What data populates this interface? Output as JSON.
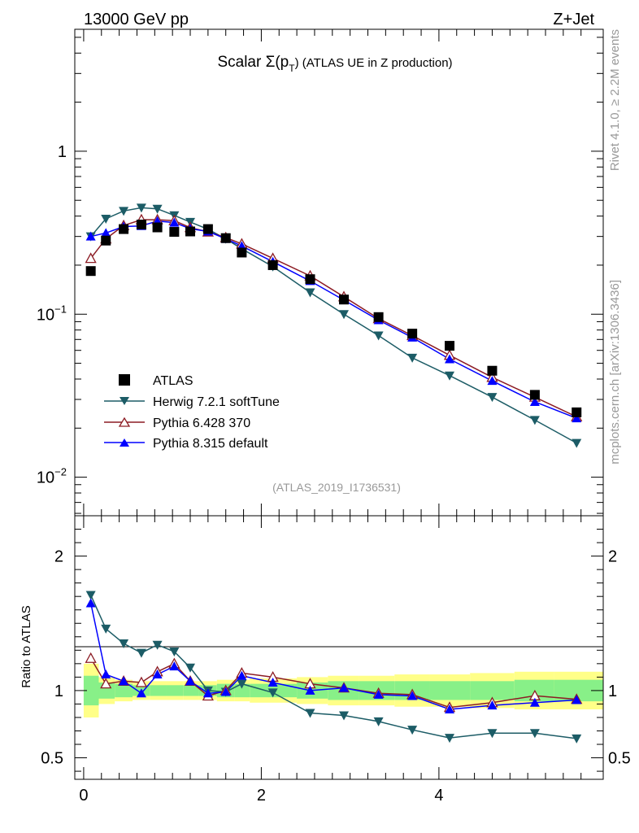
{
  "header": {
    "energy_label": "13000 GeV pp",
    "process_label": "Z+Jet"
  },
  "side_labels": {
    "rivet": "Rivet 4.1.0, ≥ 2.2M events",
    "mcplots": "mcplots.cern.ch [arXiv:1306.3436]"
  },
  "chart_data": [
    {
      "type": "line",
      "panel": "main",
      "title": "Scalar Σ(p_T) (ATLAS UE in Z production)",
      "title_parts": {
        "pre": "Scalar Σ(p",
        "sub": "T",
        "post": ") (ATLAS UE in Z production)"
      },
      "analysis_id": "(ATLAS_2019_I1736531)",
      "xscale": "linear",
      "yscale": "log",
      "xlim": [
        -0.1,
        5.85
      ],
      "ylim": [
        0.0058,
        5.6
      ],
      "ytick_labels": [
        {
          "value": 1,
          "base": "1",
          "exp": ""
        },
        {
          "value": 0.1,
          "base": "10",
          "exp": "−1"
        },
        {
          "value": 0.01,
          "base": "10",
          "exp": "−2"
        }
      ],
      "legend_position": "bottom-left",
      "series": [
        {
          "name": "ATLAS",
          "color": "#000000",
          "marker": "square",
          "x": [
            0.08,
            0.25,
            0.45,
            0.65,
            0.83,
            1.02,
            1.2,
            1.4,
            1.6,
            1.78,
            2.13,
            2.55,
            2.93,
            3.32,
            3.7,
            4.12,
            4.6,
            5.08,
            5.55
          ],
          "y": [
            0.184,
            0.283,
            0.333,
            0.355,
            0.341,
            0.32,
            0.322,
            0.333,
            0.293,
            0.239,
            0.2,
            0.164,
            0.123,
            0.096,
            0.076,
            0.064,
            0.045,
            0.032,
            0.025
          ]
        },
        {
          "name": "Herwig 7.2.1 softTune",
          "color": "#1c5c66",
          "marker": "triangle-down",
          "x": [
            0.08,
            0.25,
            0.45,
            0.65,
            0.83,
            1.02,
            1.2,
            1.4,
            1.6,
            1.78,
            2.13,
            2.55,
            2.93,
            3.32,
            3.7,
            4.12,
            4.6,
            5.08,
            5.55
          ],
          "y": [
            0.3,
            0.385,
            0.43,
            0.45,
            0.443,
            0.404,
            0.368,
            0.332,
            0.29,
            0.252,
            0.196,
            0.136,
            0.1,
            0.074,
            0.054,
            0.042,
            0.031,
            0.0224,
            0.0162
          ]
        },
        {
          "name": "Pythia 6.428 370",
          "color": "#8c1c24",
          "marker": "triangle-up-open",
          "x": [
            0.08,
            0.25,
            0.45,
            0.65,
            0.83,
            1.02,
            1.2,
            1.4,
            1.6,
            1.78,
            2.13,
            2.55,
            2.93,
            3.32,
            3.7,
            4.12,
            4.6,
            5.08,
            5.55
          ],
          "y": [
            0.22,
            0.29,
            0.35,
            0.38,
            0.38,
            0.375,
            0.34,
            0.32,
            0.295,
            0.27,
            0.22,
            0.172,
            0.128,
            0.094,
            0.074,
            0.056,
            0.041,
            0.031,
            0.0235
          ]
        },
        {
          "name": "Pythia 8.315 default",
          "color": "#0000ff",
          "marker": "triangle-up",
          "x": [
            0.08,
            0.25,
            0.45,
            0.65,
            0.83,
            1.02,
            1.2,
            1.4,
            1.6,
            1.78,
            2.13,
            2.55,
            2.93,
            3.32,
            3.7,
            4.12,
            4.6,
            5.08,
            5.55
          ],
          "y": [
            0.3,
            0.315,
            0.345,
            0.348,
            0.373,
            0.365,
            0.335,
            0.322,
            0.29,
            0.262,
            0.21,
            0.16,
            0.122,
            0.092,
            0.072,
            0.053,
            0.039,
            0.029,
            0.023
          ]
        }
      ]
    },
    {
      "type": "line",
      "panel": "ratio",
      "ylabel": "Ratio to ATLAS",
      "xscale": "linear",
      "yscale": "linear",
      "xlim": [
        -0.1,
        5.85
      ],
      "ylim": [
        0.34,
        2.3
      ],
      "xtick_labels": [
        "0",
        "2",
        "4"
      ],
      "ytick_labels": [
        "2",
        "1",
        "0.5"
      ],
      "band_edges": [
        0.0,
        0.17,
        0.35,
        0.55,
        0.75,
        0.93,
        1.12,
        1.3,
        1.5,
        1.7,
        1.87,
        2.4,
        2.75,
        3.1,
        3.5,
        3.9,
        4.35,
        4.85,
        5.3,
        5.85
      ],
      "band_inner": [
        0.11,
        0.06,
        0.05,
        0.04,
        0.04,
        0.04,
        0.04,
        0.04,
        0.05,
        0.05,
        0.05,
        0.06,
        0.07,
        0.07,
        0.07,
        0.07,
        0.07,
        0.08,
        0.08
      ],
      "band_outer": [
        0.2,
        0.1,
        0.08,
        0.07,
        0.07,
        0.07,
        0.07,
        0.07,
        0.08,
        0.08,
        0.09,
        0.1,
        0.11,
        0.11,
        0.12,
        0.12,
        0.13,
        0.14,
        0.14
      ],
      "series": [
        {
          "name": "Herwig 7.2.1 softTune",
          "color": "#1c5c66",
          "marker": "triangle-down",
          "x": [
            0.08,
            0.25,
            0.45,
            0.65,
            0.83,
            1.02,
            1.2,
            1.4,
            1.6,
            1.78,
            2.13,
            2.55,
            2.93,
            3.32,
            3.7,
            4.12,
            4.6,
            5.08,
            5.55
          ],
          "y": [
            1.71,
            1.46,
            1.35,
            1.28,
            1.34,
            1.29,
            1.17,
            1.0,
            0.99,
            1.05,
            0.985,
            0.833,
            0.815,
            0.77,
            0.708,
            0.648,
            0.683,
            0.683,
            0.643
          ]
        },
        {
          "name": "Pythia 6.428 370",
          "color": "#8c1c24",
          "marker": "triangle-up-open",
          "x": [
            0.08,
            0.25,
            0.45,
            0.65,
            0.83,
            1.02,
            1.2,
            1.4,
            1.6,
            1.78,
            2.13,
            2.55,
            2.93,
            3.32,
            3.7,
            4.12,
            4.6,
            5.08,
            5.55
          ],
          "y": [
            1.24,
            1.05,
            1.07,
            1.06,
            1.14,
            1.2,
            1.07,
            0.96,
            1.0,
            1.13,
            1.1,
            1.05,
            1.02,
            0.98,
            0.97,
            0.875,
            0.91,
            0.962,
            0.935
          ]
        },
        {
          "name": "Pythia 8.315 default",
          "color": "#0000ff",
          "marker": "triangle-up",
          "x": [
            0.08,
            0.25,
            0.45,
            0.65,
            0.83,
            1.02,
            1.2,
            1.4,
            1.6,
            1.78,
            2.13,
            2.55,
            2.93,
            3.32,
            3.7,
            4.12,
            4.6,
            5.08,
            5.55
          ],
          "y": [
            1.65,
            1.12,
            1.07,
            0.98,
            1.12,
            1.18,
            1.07,
            0.98,
            0.99,
            1.11,
            1.06,
            1.0,
            1.02,
            0.97,
            0.96,
            0.86,
            0.89,
            0.91,
            0.93
          ]
        }
      ]
    }
  ]
}
